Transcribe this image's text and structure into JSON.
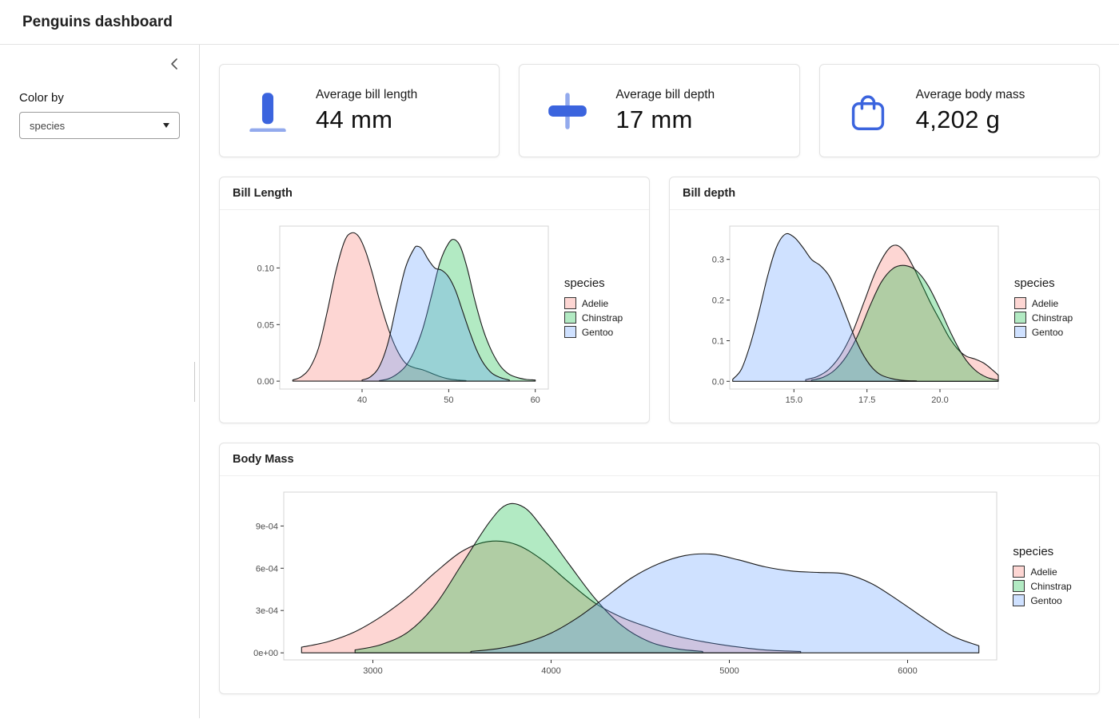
{
  "header": {
    "title": "Penguins dashboard"
  },
  "sidebar": {
    "color_by_label": "Color by",
    "select_value": "species"
  },
  "accent_color": "#3b64de",
  "value_boxes": [
    {
      "title": "Average bill length",
      "value": "44 mm",
      "icon": "bill-length-icon"
    },
    {
      "title": "Average bill depth",
      "value": "17 mm",
      "icon": "bill-depth-icon"
    },
    {
      "title": "Average body mass",
      "value": "4,202 g",
      "icon": "shopping-bag-icon"
    }
  ],
  "chart_data": [
    {
      "type": "area",
      "title": "Bill Length",
      "legend_title": "species",
      "legend_position": "right",
      "grid": false,
      "xlabel": "",
      "ylabel": "",
      "x_range": [
        30.5,
        61.5
      ],
      "y_range": [
        -0.007,
        0.137
      ],
      "x_ticks": [
        40,
        50,
        60
      ],
      "x_tick_labels": [
        "40",
        "50",
        "60"
      ],
      "y_ticks": [
        0,
        0.05,
        0.1
      ],
      "y_tick_labels": [
        "0.00",
        "0.05",
        "0.10"
      ],
      "series": [
        {
          "name": "Adelie",
          "fill": "rgba(248,118,109,0.30)",
          "stroke": "#1a1a1a",
          "points": [
            [
              32,
              0.001
            ],
            [
              33,
              0.004
            ],
            [
              34,
              0.012
            ],
            [
              35,
              0.03
            ],
            [
              36,
              0.062
            ],
            [
              37,
              0.098
            ],
            [
              38,
              0.124
            ],
            [
              38.8,
              0.131
            ],
            [
              39.6,
              0.128
            ],
            [
              40.4,
              0.115
            ],
            [
              41.2,
              0.095
            ],
            [
              42,
              0.072
            ],
            [
              43,
              0.047
            ],
            [
              44,
              0.028
            ],
            [
              45,
              0.016
            ],
            [
              46,
              0.012
            ],
            [
              47,
              0.01
            ],
            [
              48,
              0.007
            ],
            [
              49,
              0.004
            ],
            [
              50,
              0.002
            ],
            [
              51,
              0.001
            ],
            [
              52,
              0.0005
            ]
          ]
        },
        {
          "name": "Chinstrap",
          "fill": "rgba(0,186,56,0.30)",
          "stroke": "#1a1a1a",
          "points": [
            [
              42,
              0.0005
            ],
            [
              43,
              0.002
            ],
            [
              44,
              0.006
            ],
            [
              45,
              0.013
            ],
            [
              46,
              0.026
            ],
            [
              47,
              0.046
            ],
            [
              48,
              0.075
            ],
            [
              49,
              0.105
            ],
            [
              50,
              0.122
            ],
            [
              50.7,
              0.125
            ],
            [
              51.4,
              0.118
            ],
            [
              52.2,
              0.098
            ],
            [
              53,
              0.072
            ],
            [
              54,
              0.045
            ],
            [
              55,
              0.026
            ],
            [
              56,
              0.013
            ],
            [
              57,
              0.006
            ],
            [
              58,
              0.003
            ],
            [
              59,
              0.0015
            ],
            [
              60,
              0.001
            ]
          ]
        },
        {
          "name": "Gentoo",
          "fill": "rgba(97,156,255,0.30)",
          "stroke": "#1a1a1a",
          "points": [
            [
              40,
              0.001
            ],
            [
              41,
              0.004
            ],
            [
              42,
              0.013
            ],
            [
              43,
              0.034
            ],
            [
              44,
              0.068
            ],
            [
              45,
              0.1
            ],
            [
              46,
              0.117
            ],
            [
              46.5,
              0.119
            ],
            [
              47,
              0.116
            ],
            [
              47.6,
              0.108
            ],
            [
              48.4,
              0.1
            ],
            [
              49.2,
              0.098
            ],
            [
              50,
              0.092
            ],
            [
              50.8,
              0.08
            ],
            [
              51.6,
              0.062
            ],
            [
              52.4,
              0.044
            ],
            [
              53.2,
              0.028
            ],
            [
              54,
              0.016
            ],
            [
              55,
              0.007
            ],
            [
              56,
              0.003
            ],
            [
              57,
              0.001
            ]
          ]
        }
      ]
    },
    {
      "type": "area",
      "title": "Bill depth",
      "legend_title": "species",
      "legend_position": "right",
      "grid": false,
      "xlabel": "",
      "ylabel": "",
      "x_range": [
        12.8,
        22.0
      ],
      "y_range": [
        -0.019,
        0.382
      ],
      "x_ticks": [
        15.0,
        17.5,
        20.0
      ],
      "x_tick_labels": [
        "15.0",
        "17.5",
        "20.0"
      ],
      "y_ticks": [
        0,
        0.1,
        0.2,
        0.3
      ],
      "y_tick_labels": [
        "0.0",
        "0.1",
        "0.2",
        "0.3"
      ],
      "series": [
        {
          "name": "Adelie",
          "fill": "rgba(248,118,109,0.30)",
          "stroke": "#1a1a1a",
          "points": [
            [
              15.4,
              0.004
            ],
            [
              15.8,
              0.012
            ],
            [
              16.2,
              0.03
            ],
            [
              16.6,
              0.065
            ],
            [
              17,
              0.12
            ],
            [
              17.4,
              0.195
            ],
            [
              17.8,
              0.27
            ],
            [
              18.2,
              0.322
            ],
            [
              18.5,
              0.335
            ],
            [
              18.8,
              0.318
            ],
            [
              19.1,
              0.28
            ],
            [
              19.4,
              0.235
            ],
            [
              19.7,
              0.19
            ],
            [
              20,
              0.15
            ],
            [
              20.3,
              0.11
            ],
            [
              20.6,
              0.08
            ],
            [
              20.9,
              0.062
            ],
            [
              21.2,
              0.055
            ],
            [
              21.5,
              0.045
            ],
            [
              21.8,
              0.028
            ],
            [
              22,
              0.015
            ]
          ]
        },
        {
          "name": "Chinstrap",
          "fill": "rgba(0,186,56,0.30)",
          "stroke": "#1a1a1a",
          "points": [
            [
              15.6,
              0.003
            ],
            [
              16,
              0.01
            ],
            [
              16.4,
              0.028
            ],
            [
              16.8,
              0.062
            ],
            [
              17.2,
              0.115
            ],
            [
              17.6,
              0.185
            ],
            [
              18,
              0.245
            ],
            [
              18.4,
              0.278
            ],
            [
              18.8,
              0.285
            ],
            [
              19.2,
              0.272
            ],
            [
              19.6,
              0.235
            ],
            [
              20,
              0.178
            ],
            [
              20.4,
              0.115
            ],
            [
              20.8,
              0.062
            ],
            [
              21.2,
              0.028
            ],
            [
              21.6,
              0.01
            ],
            [
              22,
              0.003
            ]
          ]
        },
        {
          "name": "Gentoo",
          "fill": "rgba(97,156,255,0.30)",
          "stroke": "#1a1a1a",
          "points": [
            [
              12.9,
              0.005
            ],
            [
              13.2,
              0.03
            ],
            [
              13.5,
              0.09
            ],
            [
              13.8,
              0.17
            ],
            [
              14.1,
              0.26
            ],
            [
              14.4,
              0.33
            ],
            [
              14.7,
              0.362
            ],
            [
              15,
              0.355
            ],
            [
              15.3,
              0.33
            ],
            [
              15.6,
              0.3
            ],
            [
              15.9,
              0.285
            ],
            [
              16.2,
              0.26
            ],
            [
              16.5,
              0.215
            ],
            [
              16.8,
              0.16
            ],
            [
              17.1,
              0.105
            ],
            [
              17.4,
              0.062
            ],
            [
              17.7,
              0.032
            ],
            [
              18,
              0.015
            ],
            [
              18.4,
              0.006
            ],
            [
              18.8,
              0.002
            ],
            [
              19.2,
              0.001
            ]
          ]
        }
      ]
    },
    {
      "type": "area",
      "title": "Body Mass",
      "legend_title": "species",
      "legend_position": "right",
      "grid": false,
      "xlabel": "",
      "ylabel": "",
      "x_range": [
        2500,
        6500
      ],
      "y_range": [
        -5e-05,
        0.00114
      ],
      "x_ticks": [
        3000,
        4000,
        5000,
        6000
      ],
      "x_tick_labels": [
        "3000",
        "4000",
        "5000",
        "6000"
      ],
      "y_ticks": [
        0,
        0.0003,
        0.0006,
        0.0009
      ],
      "y_tick_labels": [
        "0e+00",
        "3e-04",
        "6e-04",
        "9e-04"
      ],
      "series": [
        {
          "name": "Adelie",
          "fill": "rgba(248,118,109,0.30)",
          "stroke": "#1a1a1a",
          "points": [
            [
              2600,
              4e-05
            ],
            [
              2750,
              8e-05
            ],
            [
              2900,
              0.00015
            ],
            [
              3050,
              0.00026
            ],
            [
              3200,
              0.0004
            ],
            [
              3350,
              0.00057
            ],
            [
              3500,
              0.00072
            ],
            [
              3650,
              0.00079
            ],
            [
              3800,
              0.00077
            ],
            [
              3950,
              0.00066
            ],
            [
              4100,
              0.0005
            ],
            [
              4250,
              0.00035
            ],
            [
              4400,
              0.00025
            ],
            [
              4550,
              0.00018
            ],
            [
              4700,
              0.00012
            ],
            [
              4850,
              8e-05
            ],
            [
              5000,
              5e-05
            ],
            [
              5200,
              2e-05
            ],
            [
              5400,
              1e-05
            ]
          ]
        },
        {
          "name": "Chinstrap",
          "fill": "rgba(0,186,56,0.30)",
          "stroke": "#1a1a1a",
          "points": [
            [
              2900,
              2e-05
            ],
            [
              3050,
              6e-05
            ],
            [
              3200,
              0.00015
            ],
            [
              3350,
              0.00034
            ],
            [
              3500,
              0.00063
            ],
            [
              3650,
              0.00092
            ],
            [
              3750,
              0.00105
            ],
            [
              3850,
              0.00103
            ],
            [
              3950,
              0.00089
            ],
            [
              4100,
              0.00063
            ],
            [
              4250,
              0.00038
            ],
            [
              4400,
              0.00019
            ],
            [
              4550,
              8e-05
            ],
            [
              4700,
              3e-05
            ],
            [
              4850,
              1e-05
            ]
          ]
        },
        {
          "name": "Gentoo",
          "fill": "rgba(97,156,255,0.30)",
          "stroke": "#1a1a1a",
          "points": [
            [
              3550,
              1e-05
            ],
            [
              3700,
              3e-05
            ],
            [
              3850,
              7e-05
            ],
            [
              4000,
              0.00014
            ],
            [
              4150,
              0.00025
            ],
            [
              4300,
              0.00039
            ],
            [
              4450,
              0.00053
            ],
            [
              4600,
              0.00063
            ],
            [
              4750,
              0.00069
            ],
            [
              4900,
              0.0007
            ],
            [
              5050,
              0.00066
            ],
            [
              5200,
              0.00061
            ],
            [
              5350,
              0.00058
            ],
            [
              5500,
              0.00057
            ],
            [
              5650,
              0.00056
            ],
            [
              5800,
              0.00049
            ],
            [
              5950,
              0.00037
            ],
            [
              6100,
              0.00024
            ],
            [
              6250,
              0.00012
            ],
            [
              6400,
              5e-05
            ]
          ]
        }
      ]
    }
  ]
}
